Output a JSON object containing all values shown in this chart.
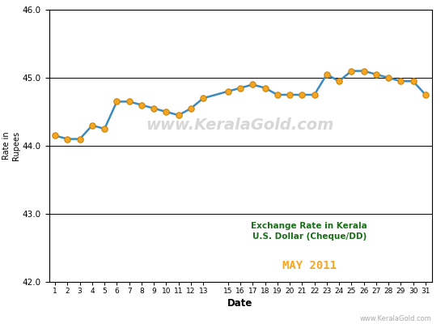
{
  "dates": [
    1,
    2,
    3,
    4,
    5,
    6,
    7,
    8,
    9,
    10,
    11,
    12,
    13,
    15,
    16,
    17,
    18,
    19,
    20,
    21,
    22,
    23,
    24,
    25,
    26,
    27,
    28,
    29,
    30,
    31
  ],
  "values": [
    44.15,
    44.1,
    44.1,
    44.3,
    44.25,
    44.65,
    44.65,
    44.6,
    44.55,
    44.5,
    44.45,
    44.55,
    44.7,
    44.8,
    44.85,
    44.9,
    44.85,
    44.75,
    44.75,
    44.75,
    44.75,
    45.05,
    44.95,
    45.1,
    45.1,
    45.05,
    45.0,
    44.95,
    44.95,
    44.75
  ],
  "xlim": [
    0.5,
    31.5
  ],
  "ylim": [
    42.0,
    46.0
  ],
  "yticks": [
    42.0,
    43.0,
    44.0,
    45.0,
    46.0
  ],
  "xticks": [
    1,
    2,
    3,
    4,
    5,
    6,
    7,
    8,
    9,
    10,
    11,
    12,
    13,
    15,
    16,
    17,
    18,
    19,
    20,
    21,
    22,
    23,
    24,
    25,
    26,
    27,
    28,
    29,
    30,
    31
  ],
  "xlabel": "Date",
  "ylabel": "Rate in\nRupees",
  "line_color": "#3b8abf",
  "marker_color": "#f5a623",
  "marker_edge_color": "#c8820a",
  "title_line1": "Exchange Rate in Kerala",
  "title_line2": "U.S. Dollar (Cheque/DD)",
  "title_line3": "MAY 2011",
  "title_color": "#1a6e1a",
  "month_color": "#f5a623",
  "watermark": "www.KeralaGold.com",
  "watermark_color": "#d0d0d0",
  "bg_color": "#ffffff",
  "grid_color": "#000000",
  "footer_text": "www.KeralaGold.com",
  "footer_color": "#aaaaaa"
}
